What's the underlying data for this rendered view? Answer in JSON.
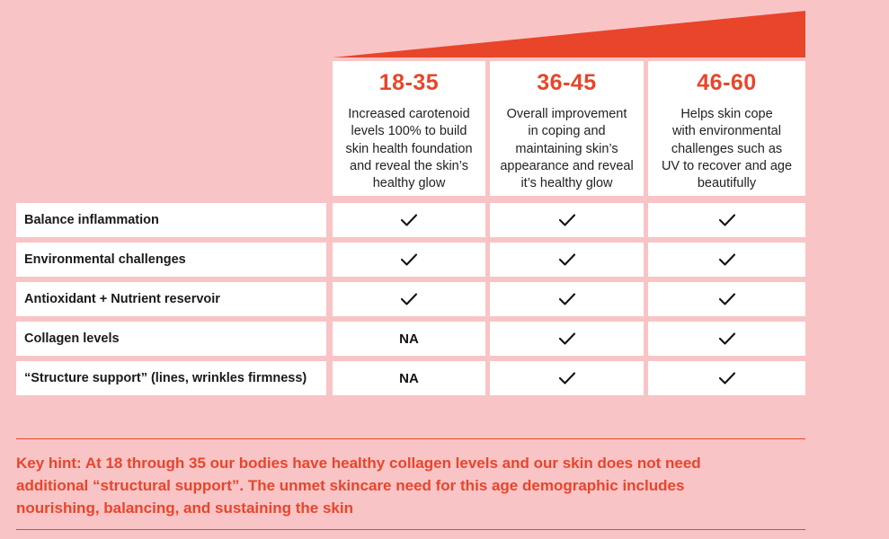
{
  "header": {
    "accent_color": "#e8452b",
    "columns": [
      {
        "age": "18-35",
        "lines": [
          "Increased carotenoid",
          "levels 100% to build",
          "skin health foundation",
          "and reveal the skin’s",
          "healthy glow"
        ]
      },
      {
        "age": "36-45",
        "lines": [
          "Overall improvement",
          "in coping and",
          "maintaining skin’s",
          "appearance and reveal",
          "it’s healthy glow"
        ]
      },
      {
        "age": "46-60",
        "lines": [
          "Helps skin cope",
          "with environmental",
          "challenges such as",
          "UV to recover and age",
          "beautifully"
        ]
      }
    ]
  },
  "rows": [
    {
      "label": "Balance inflammation",
      "values": [
        "check",
        "check",
        "check"
      ]
    },
    {
      "label": "Environmental challenges",
      "values": [
        "check",
        "check",
        "check"
      ]
    },
    {
      "label": "Antioxidant + Nutrient reservoir",
      "values": [
        "check",
        "check",
        "check"
      ]
    },
    {
      "label": "Collagen levels",
      "values": [
        "NA",
        "check",
        "check"
      ]
    },
    {
      "label": "“Structure support” (lines, wrinkles firmness)",
      "values": [
        "NA",
        "check",
        "check"
      ]
    }
  ],
  "hint": {
    "lines": [
      "Key hint: At 18 through 35 our bodies have healthy collagen levels and our skin does not need",
      "additional “structural support”. The unmet skincare need for this age demographic includes",
      "nourishing, balancing, and sustaining the skin"
    ]
  }
}
